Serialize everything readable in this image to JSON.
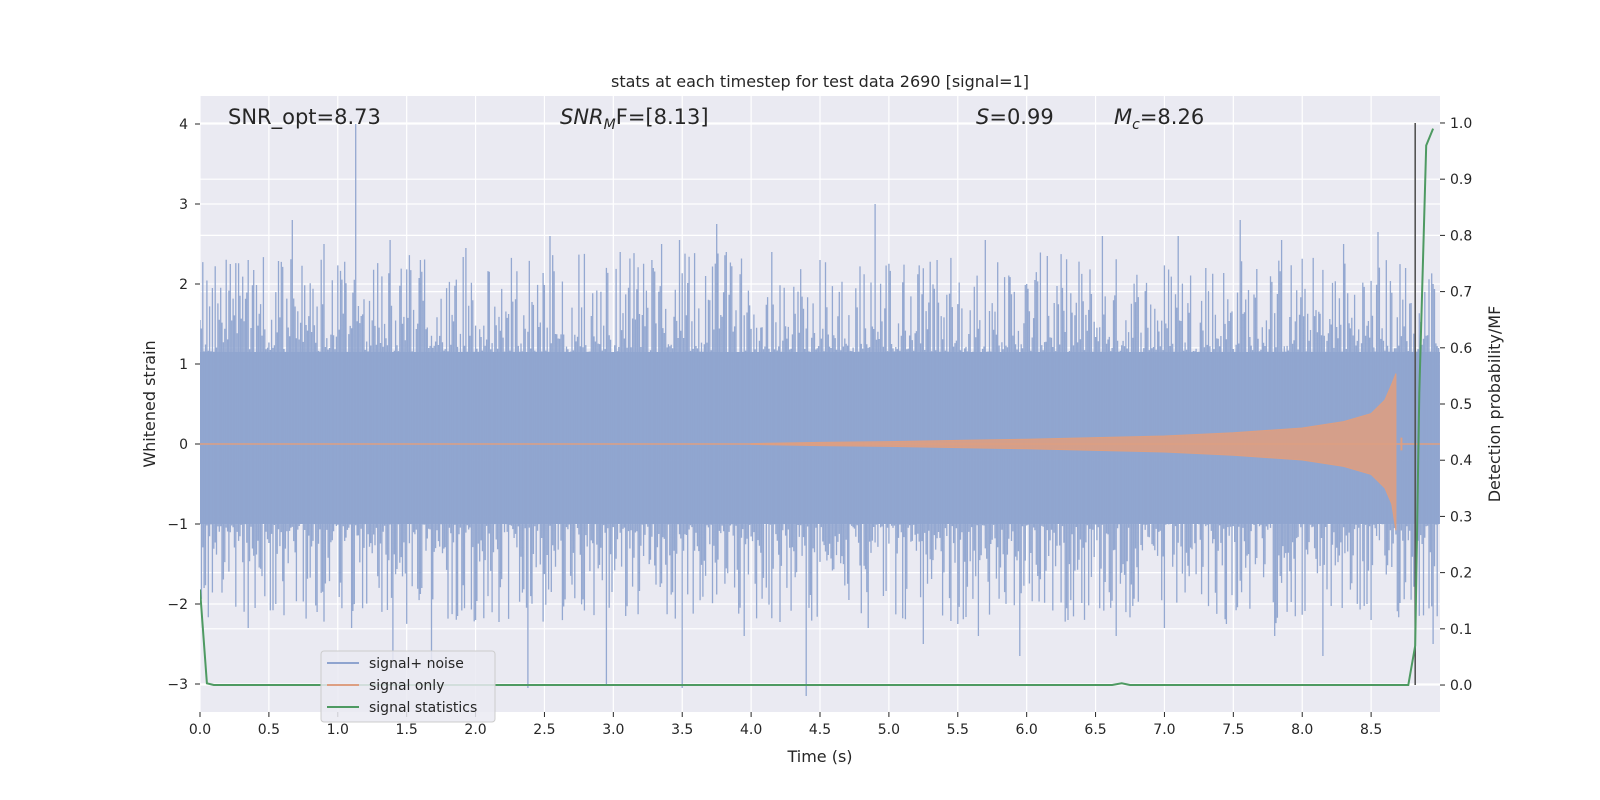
{
  "chart_data": {
    "type": "line",
    "title": "stats at each timestep for test data 2690 [signal=1]",
    "xlabel": "Time (s)",
    "ylabel": "Whitened strain",
    "y2label": "Detection probability/MF",
    "xlim": [
      0.0,
      9.0
    ],
    "ylim": [
      -3.35,
      4.35
    ],
    "y2lim": [
      -0.048,
      1.048
    ],
    "x_ticks": [
      "0.0",
      "0.5",
      "1.0",
      "1.5",
      "2.0",
      "2.5",
      "3.0",
      "3.5",
      "4.0",
      "4.5",
      "5.0",
      "5.5",
      "6.0",
      "6.5",
      "7.0",
      "7.5",
      "8.0",
      "8.5"
    ],
    "y_ticks": [
      "−3",
      "−2",
      "−1",
      "0",
      "1",
      "2",
      "3",
      "4"
    ],
    "y2_ticks": [
      "0.0",
      "0.1",
      "0.2",
      "0.3",
      "0.4",
      "0.5",
      "0.6",
      "0.7",
      "0.8",
      "0.9",
      "1.0"
    ],
    "grid": true,
    "legend_position": "lower-left",
    "annotations": {
      "snr_opt": "SNR_opt=8.73",
      "snr_mf_main": "SNR",
      "snr_mf_sub": "M",
      "snr_mf_rest": "F=[8.13]",
      "s_main": "S",
      "s_rest": "=0.99",
      "mc_main": "M",
      "mc_sub": "c",
      "mc_rest": "=8.26"
    },
    "series": [
      {
        "name": "signal+ noise",
        "color": "#8fa4cf",
        "envelope": {
          "x_range": [
            0.0,
            9.0
          ],
          "typical_band": [
            -1.0,
            1.15
          ],
          "upper_peaks": [
            [
              0.0,
              1.55
            ],
            [
              0.22,
              2.25
            ],
            [
              0.35,
              2.3
            ],
            [
              0.67,
              2.8
            ],
            [
              0.9,
              2.5
            ],
            [
              1.13,
              4.0
            ],
            [
              1.38,
              2.55
            ],
            [
              1.6,
              2.3
            ],
            [
              1.93,
              2.45
            ],
            [
              2.3,
              1.9
            ],
            [
              2.54,
              2.6
            ],
            [
              3.05,
              2.4
            ],
            [
              3.28,
              2.3
            ],
            [
              3.35,
              2.5
            ],
            [
              3.48,
              2.55
            ],
            [
              3.75,
              2.75
            ],
            [
              3.82,
              2.4
            ],
            [
              4.15,
              2.4
            ],
            [
              4.5,
              2.3
            ],
            [
              4.9,
              3.0
            ],
            [
              5.35,
              2.3
            ],
            [
              5.7,
              2.55
            ],
            [
              6.15,
              2.35
            ],
            [
              6.55,
              2.6
            ],
            [
              7.1,
              2.6
            ],
            [
              7.3,
              2.2
            ],
            [
              7.55,
              2.8
            ],
            [
              7.85,
              2.55
            ],
            [
              8.0,
              2.3
            ],
            [
              8.3,
              2.5
            ],
            [
              8.55,
              2.65
            ],
            [
              8.75,
              2.2
            ],
            [
              8.95,
              2.0
            ]
          ],
          "lower_peaks": [
            [
              0.03,
              -1.8
            ],
            [
              0.35,
              -2.3
            ],
            [
              0.55,
              -2.0
            ],
            [
              0.85,
              -2.1
            ],
            [
              1.1,
              -2.3
            ],
            [
              1.4,
              -2.7
            ],
            [
              1.68,
              -2.8
            ],
            [
              2.0,
              -2.2
            ],
            [
              2.38,
              -3.05
            ],
            [
              2.95,
              -3.0
            ],
            [
              3.5,
              -3.05
            ],
            [
              3.95,
              -2.4
            ],
            [
              4.4,
              -3.15
            ],
            [
              4.85,
              -2.3
            ],
            [
              5.25,
              -2.5
            ],
            [
              5.65,
              -2.4
            ],
            [
              5.95,
              -2.65
            ],
            [
              6.3,
              -2.2
            ],
            [
              6.65,
              -2.4
            ],
            [
              7.0,
              -2.3
            ],
            [
              7.45,
              -2.25
            ],
            [
              7.8,
              -2.4
            ],
            [
              8.15,
              -2.65
            ],
            [
              8.5,
              -2.2
            ],
            [
              8.7,
              -2.05
            ],
            [
              8.95,
              -2.5
            ]
          ]
        }
      },
      {
        "name": "signal only",
        "color": "#dd9f82",
        "chirp": {
          "t_merger": 8.68,
          "peak_amplitude": [
            -1.08,
            0.88
          ],
          "amplitude_samples": [
            [
              4.0,
              0.005
            ],
            [
              4.5,
              0.02
            ],
            [
              5.0,
              0.03
            ],
            [
              5.5,
              0.045
            ],
            [
              6.0,
              0.06
            ],
            [
              6.5,
              0.08
            ],
            [
              7.0,
              0.1
            ],
            [
              7.5,
              0.14
            ],
            [
              8.0,
              0.2
            ],
            [
              8.3,
              0.28
            ],
            [
              8.5,
              0.38
            ],
            [
              8.6,
              0.55
            ],
            [
              8.65,
              0.75
            ],
            [
              8.68,
              0.88
            ]
          ]
        }
      },
      {
        "name": "signal statistics",
        "color": "#4e9a62",
        "axis": "right",
        "points": [
          [
            0.0,
            0.17
          ],
          [
            0.05,
            0.003
          ],
          [
            0.1,
            0.0
          ],
          [
            6.62,
            0.0
          ],
          [
            6.69,
            0.003
          ],
          [
            6.75,
            0.0
          ],
          [
            8.77,
            0.0
          ],
          [
            8.82,
            0.07
          ],
          [
            8.85,
            0.52
          ],
          [
            8.9,
            0.96
          ],
          [
            8.95,
            0.99
          ]
        ]
      }
    ],
    "vertical_marker": {
      "x": 8.82,
      "color": "#555555"
    }
  }
}
